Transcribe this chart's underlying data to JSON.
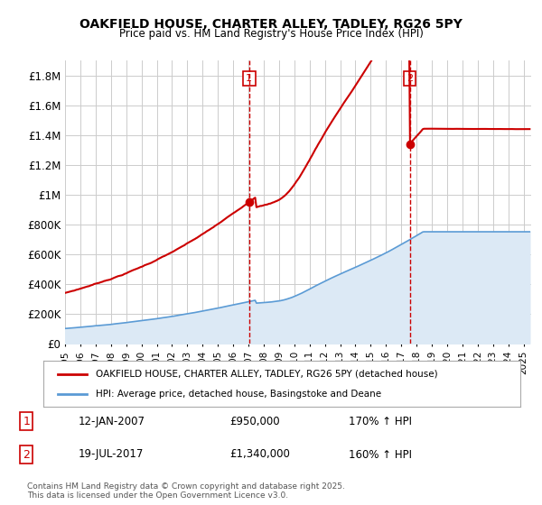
{
  "title": "OAKFIELD HOUSE, CHARTER ALLEY, TADLEY, RG26 5PY",
  "subtitle": "Price paid vs. HM Land Registry's House Price Index (HPI)",
  "ylabel_ticks": [
    "£0",
    "£200K",
    "£400K",
    "£600K",
    "£800K",
    "£1M",
    "£1.2M",
    "£1.4M",
    "£1.6M",
    "£1.8M"
  ],
  "ytick_vals": [
    0,
    200000,
    400000,
    600000,
    800000,
    1000000,
    1200000,
    1400000,
    1600000,
    1800000
  ],
  "ylim": [
    0,
    1900000
  ],
  "xlim_start": 1995.0,
  "xlim_end": 2025.5,
  "vline1_x": 2007.04,
  "vline2_x": 2017.55,
  "marker1_x": 2007.04,
  "marker1_y": 950000,
  "marker2_x": 2017.55,
  "marker2_y": 1340000,
  "legend_label_red": "OAKFIELD HOUSE, CHARTER ALLEY, TADLEY, RG26 5PY (detached house)",
  "legend_label_blue": "HPI: Average price, detached house, Basingstoke and Deane",
  "annotation1_date": "12-JAN-2007",
  "annotation1_price": "£950,000",
  "annotation1_hpi": "170% ↑ HPI",
  "annotation2_date": "19-JUL-2017",
  "annotation2_price": "£1,340,000",
  "annotation2_hpi": "160% ↑ HPI",
  "footer": "Contains HM Land Registry data © Crown copyright and database right 2025.\nThis data is licensed under the Open Government Licence v3.0.",
  "red_line_color": "#cc0000",
  "blue_line_color": "#5b9bd5",
  "blue_fill_color": "#dce9f5",
  "vline_color": "#cc0000",
  "bg_color": "#ffffff",
  "grid_color": "#cccccc",
  "box_color": "#cc0000"
}
